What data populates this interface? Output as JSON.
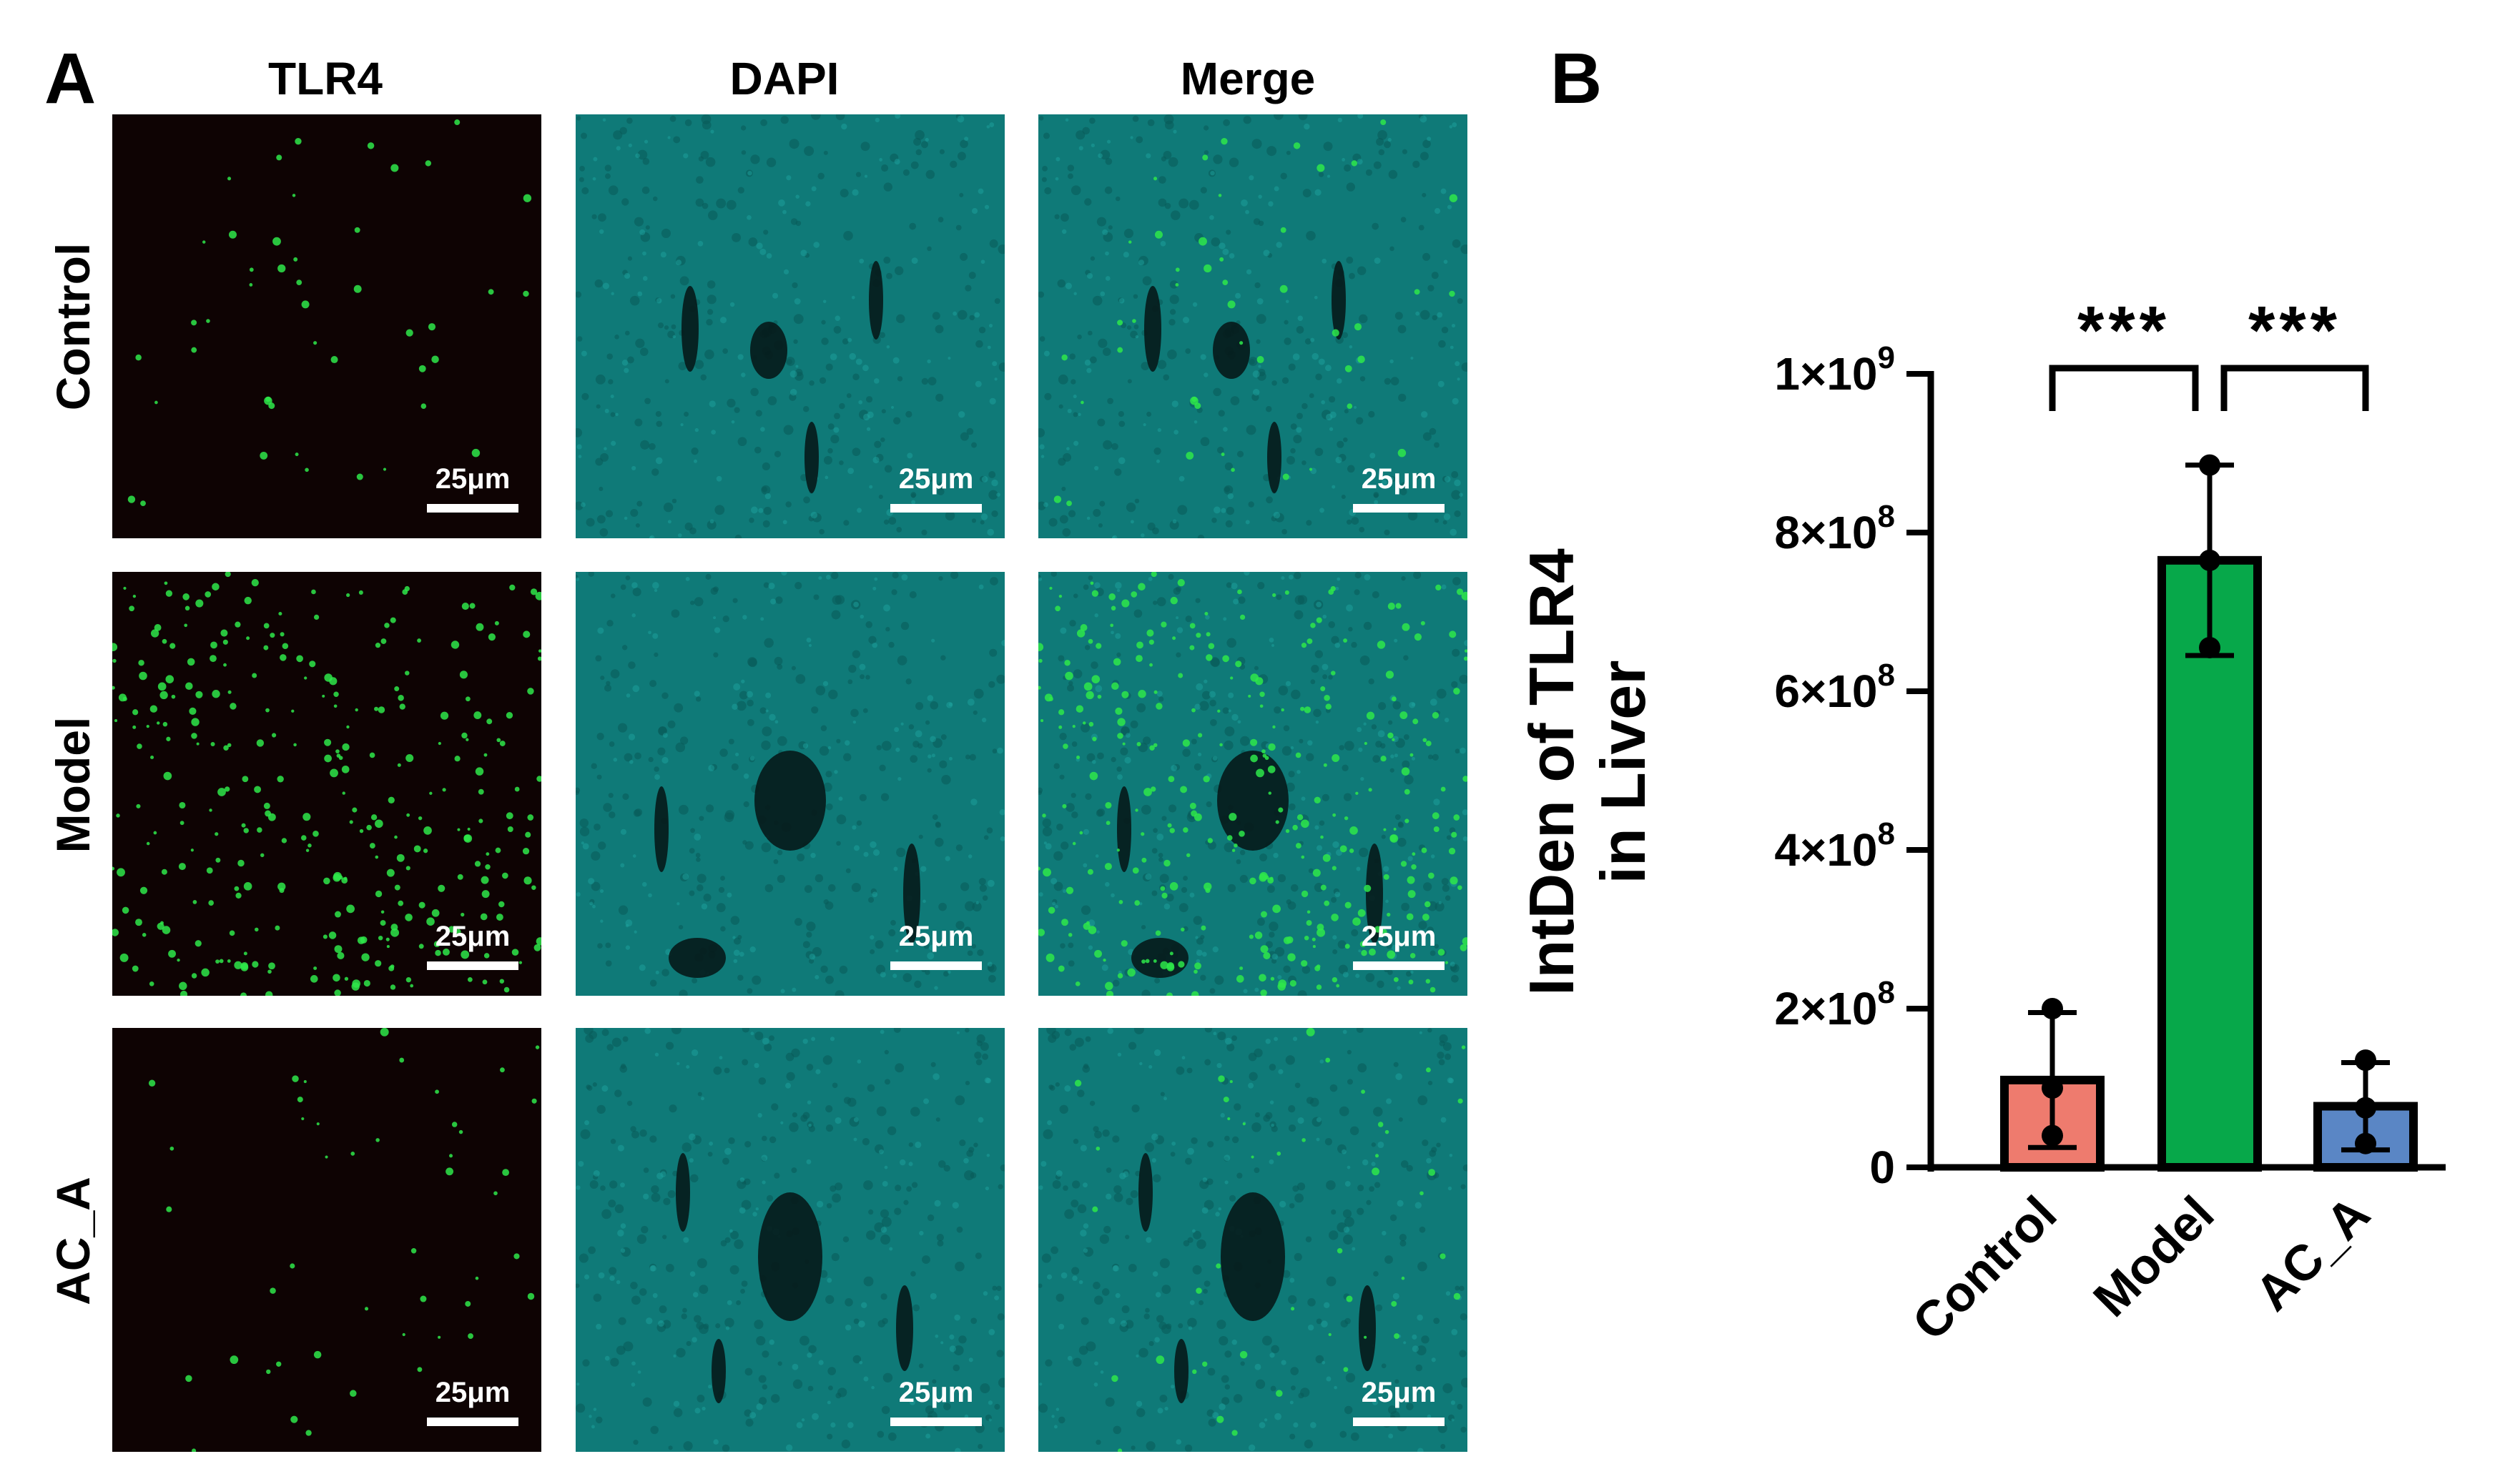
{
  "panel_a": {
    "letter": "A",
    "columns": [
      {
        "label": "TLR4",
        "kind": "tlr4"
      },
      {
        "label": "DAPI",
        "kind": "dapi"
      },
      {
        "label": "Merge",
        "kind": "merge"
      }
    ],
    "rows": [
      {
        "label": "Control",
        "tlr4_density": "sparse"
      },
      {
        "label": "Model",
        "tlr4_density": "dense"
      },
      {
        "label": "AC_A",
        "tlr4_density": "sparse"
      }
    ],
    "scale_bar_label": "25μm",
    "colors": {
      "tlr4_background": "#0e0303",
      "tlr4_signal": "#2ee84a",
      "dapi_tissue": "#0f7a78",
      "dapi_vessel": "#061a1a"
    }
  },
  "panel_b": {
    "letter": "B"
  },
  "chart_data": {
    "type": "bar",
    "categories": [
      "Control",
      "Model",
      "AC_A"
    ],
    "values": [
      110000000,
      765000000,
      77000000
    ],
    "sd": [
      85000000,
      120000000,
      55000000
    ],
    "points": [
      [
        200000000,
        100000000,
        40000000
      ],
      [
        885000000,
        765000000,
        655000000
      ],
      [
        135000000,
        75000000,
        30000000
      ]
    ],
    "bar_colors": [
      "#ee7b6e",
      "#07a84a",
      "#5a86c5"
    ],
    "ylabel_line1": "IntDen of TLR4",
    "ylabel_line2": "in Liver",
    "ylim": [
      0,
      1000000000
    ],
    "yticks": [
      {
        "value": 0,
        "base": "0",
        "exp": ""
      },
      {
        "value": 200000000,
        "base": "2×10",
        "exp": "8"
      },
      {
        "value": 400000000,
        "base": "4×10",
        "exp": "8"
      },
      {
        "value": 600000000,
        "base": "6×10",
        "exp": "8"
      },
      {
        "value": 800000000,
        "base": "8×10",
        "exp": "8"
      },
      {
        "value": 1000000000,
        "base": "1×10",
        "exp": "9"
      }
    ],
    "significance": [
      {
        "from": "Control",
        "to": "Model",
        "label": "***"
      },
      {
        "from": "Model",
        "to": "AC_A",
        "label": "***"
      }
    ]
  }
}
